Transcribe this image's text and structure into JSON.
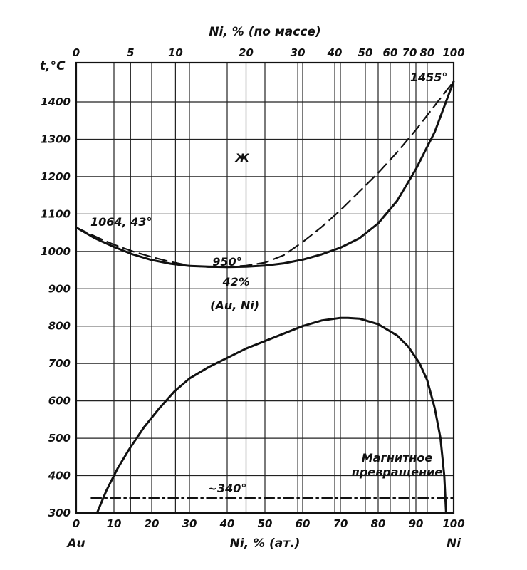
{
  "chart_data": {
    "type": "line",
    "ylabel": "t,°C",
    "xlabel_bottom": "Ni, % (ат.)",
    "xlabel_top": "Ni, % (по массе)",
    "xlim": [
      0,
      100
    ],
    "ylim": [
      300,
      1500
    ],
    "grid": true,
    "x_ticks_bottom": [
      0,
      10,
      20,
      30,
      40,
      50,
      60,
      70,
      80,
      90,
      100
    ],
    "y_ticks": [
      300,
      400,
      500,
      600,
      700,
      800,
      900,
      1000,
      1100,
      1200,
      1300,
      1400
    ],
    "top_axis_ticks": [
      {
        "label": "0",
        "at": 0
      },
      {
        "label": "5",
        "at": 14.4
      },
      {
        "label": "10",
        "at": 26.3
      },
      {
        "label": "20",
        "at": 45.0
      },
      {
        "label": "30",
        "at": 58.7
      },
      {
        "label": "40",
        "at": 68.5
      },
      {
        "label": "50",
        "at": 76.6
      },
      {
        "label": "60",
        "at": 83.2
      },
      {
        "label": "70",
        "at": 88.3
      },
      {
        "label": "80",
        "at": 93.0
      },
      {
        "label": "100",
        "at": 100
      }
    ],
    "endpoint_labels": {
      "left": "Au",
      "right": "Ni"
    },
    "series": [
      {
        "style": "solid",
        "x": [
          0,
          5,
          10,
          15,
          20,
          25,
          30,
          35,
          40,
          45,
          50,
          55,
          60,
          65,
          70,
          75,
          80,
          85,
          90,
          95,
          100
        ],
        "y": [
          1064,
          1035,
          1012,
          992,
          977,
          967,
          961,
          959,
          958,
          959,
          962,
          968,
          978,
          992,
          1010,
          1035,
          1075,
          1135,
          1220,
          1320,
          1455
        ]
      },
      {
        "style": "dashed",
        "x": [
          0,
          5,
          10,
          15,
          20,
          25,
          30,
          35,
          40,
          45,
          50,
          55,
          60,
          65,
          70,
          75,
          80,
          85,
          90,
          95,
          100
        ],
        "y": [
          1064,
          1040,
          1018,
          1000,
          985,
          972,
          962,
          958,
          958,
          962,
          970,
          990,
          1025,
          1065,
          1110,
          1160,
          1210,
          1265,
          1325,
          1390,
          1455
        ]
      },
      {
        "style": "solid",
        "x": [
          5.5,
          8,
          11,
          14,
          18,
          22,
          26,
          30,
          35,
          40,
          45,
          50,
          55,
          60,
          65,
          70,
          72,
          75,
          80,
          85,
          88,
          91,
          93,
          95,
          96.5,
          97.5,
          98
        ],
        "y": [
          300,
          360,
          420,
          470,
          530,
          580,
          625,
          660,
          690,
          715,
          740,
          760,
          780,
          800,
          815,
          822,
          822,
          820,
          805,
          775,
          745,
          700,
          655,
          580,
          500,
          400,
          300
        ]
      },
      {
        "style": "dash-dot",
        "x": [
          4,
          100
        ],
        "y": [
          340,
          340
        ]
      }
    ],
    "annotations": [
      {
        "text": "1455°",
        "x": 99.5,
        "y": 1455
      },
      {
        "text": "Ж",
        "x": 44,
        "y": 1240
      },
      {
        "text": "1064, 43°",
        "x": 0,
        "y": 1064
      },
      {
        "text": "950°",
        "x": 40,
        "y": 950
      },
      {
        "text": "42%",
        "x": 42,
        "y": 958
      },
      {
        "text": "(Au, Ni)",
        "x": 42,
        "y": 880
      },
      {
        "text": "Магнитное превращение",
        "x": 85,
        "y": 395
      },
      {
        "text": "~340°",
        "x": 40,
        "y": 340
      }
    ]
  }
}
